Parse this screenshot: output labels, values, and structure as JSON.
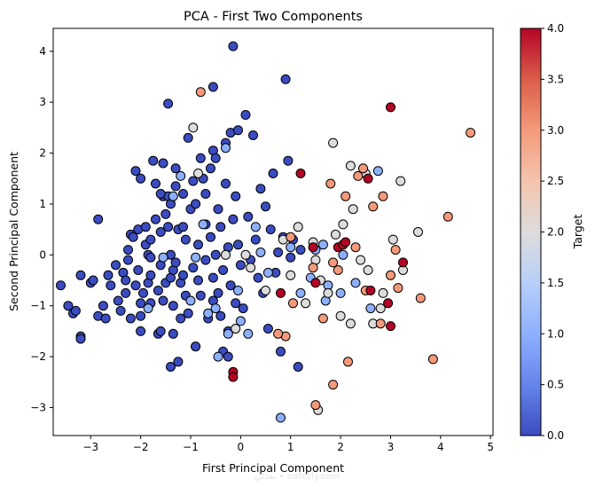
{
  "chart_data": {
    "type": "scatter",
    "title": "PCA - First Two Components",
    "xlabel": "First Principal Component",
    "ylabel": "Second Principal Component",
    "xlim": [
      -3.75,
      5.05
    ],
    "ylim": [
      -3.55,
      4.45
    ],
    "xticks": [
      -3,
      -2,
      -1,
      0,
      1,
      2,
      3,
      4,
      5
    ],
    "yticks": [
      -3,
      -2,
      -1,
      0,
      1,
      2,
      3,
      4
    ],
    "grid": false,
    "colorbar": {
      "label": "Target",
      "colormap": "coolwarm",
      "min": 0,
      "max": 4,
      "ticks": [
        "0.0",
        "0.5",
        "1.0",
        "1.5",
        "2.0",
        "2.5",
        "3.0",
        "3.5",
        "4.0"
      ],
      "colors": [
        "#3b4cc0",
        "#6485ec",
        "#8db0fe",
        "#b7cff9",
        "#dddcdc",
        "#f4c4ad",
        "#f49a7b",
        "#dc5d4a",
        "#b40426"
      ]
    },
    "watermark": "نفذلي • nafezly.com",
    "points": [
      [
        -3.6,
        -0.6,
        0
      ],
      [
        -3.45,
        -1.0,
        0
      ],
      [
        -3.35,
        -1.15,
        0
      ],
      [
        -3.3,
        -1.1,
        0
      ],
      [
        -3.2,
        -1.6,
        0
      ],
      [
        -3.2,
        -1.65,
        0
      ],
      [
        -3.2,
        -0.4,
        0
      ],
      [
        -3.0,
        -0.55,
        0
      ],
      [
        -2.95,
        -0.5,
        0
      ],
      [
        -2.85,
        0.7,
        0
      ],
      [
        -2.85,
        -1.2,
        0
      ],
      [
        -2.75,
        -1.0,
        0
      ],
      [
        -2.7,
        -1.25,
        0
      ],
      [
        -2.65,
        -0.4,
        0
      ],
      [
        -2.6,
        -0.6,
        0
      ],
      [
        -2.5,
        -0.2,
        0
      ],
      [
        -2.45,
        -0.9,
        0
      ],
      [
        -2.4,
        -1.1,
        0
      ],
      [
        -2.35,
        -0.35,
        0
      ],
      [
        -2.3,
        -0.5,
        0
      ],
      [
        -2.3,
        -0.75,
        0
      ],
      [
        -2.25,
        0.1,
        0
      ],
      [
        -2.25,
        -0.1,
        0
      ],
      [
        -2.2,
        -1.25,
        0
      ],
      [
        -2.2,
        0.4,
        0
      ],
      [
        -2.15,
        0.35,
        0
      ],
      [
        -2.1,
        -0.6,
        0
      ],
      [
        -2.1,
        1.65,
        0
      ],
      [
        -2.05,
        -0.3,
        0
      ],
      [
        -2.05,
        0.5,
        0
      ],
      [
        -2.0,
        -0.95,
        0
      ],
      [
        -2.0,
        -1.2,
        0
      ],
      [
        -2.0,
        -1.5,
        0
      ],
      [
        -2.0,
        1.5,
        0
      ],
      [
        -1.95,
        -0.75,
        0
      ],
      [
        -1.9,
        0.55,
        0
      ],
      [
        -1.9,
        0.2,
        0
      ],
      [
        -1.85,
        -0.55,
        0
      ],
      [
        -1.85,
        0.0,
        0
      ],
      [
        -1.8,
        -0.4,
        0
      ],
      [
        -1.8,
        -0.95,
        0
      ],
      [
        -1.8,
        0.3,
        0
      ],
      [
        -1.8,
        -0.05,
        0
      ],
      [
        -1.75,
        1.85,
        0
      ],
      [
        -1.7,
        1.4,
        0
      ],
      [
        -1.7,
        0.7,
        0
      ],
      [
        -1.65,
        -0.7,
        0
      ],
      [
        -1.65,
        -1.55,
        0
      ],
      [
        -1.6,
        -0.2,
        0
      ],
      [
        -1.6,
        -1.5,
        0
      ],
      [
        -1.6,
        0.45,
        0
      ],
      [
        -1.55,
        1.15,
        0
      ],
      [
        -1.55,
        1.8,
        0
      ],
      [
        -1.55,
        -0.9,
        0
      ],
      [
        -1.5,
        0.8,
        0
      ],
      [
        -1.5,
        -0.55,
        0
      ],
      [
        -1.45,
        0.55,
        0
      ],
      [
        -1.45,
        1.15,
        0
      ],
      [
        -1.4,
        -0.45,
        0
      ],
      [
        -1.4,
        0.0,
        0
      ],
      [
        -1.4,
        -2.2,
        0
      ],
      [
        -1.4,
        1.0,
        0
      ],
      [
        -1.35,
        -1.0,
        0
      ],
      [
        -1.35,
        -0.3,
        0
      ],
      [
        -1.35,
        -1.55,
        0
      ],
      [
        -1.3,
        1.35,
        0
      ],
      [
        -1.3,
        1.7,
        0
      ],
      [
        -1.3,
        -0.15,
        0
      ],
      [
        -1.25,
        0.5,
        0
      ],
      [
        -1.2,
        -0.55,
        0
      ],
      [
        -1.2,
        -1.25,
        0
      ],
      [
        -1.15,
        -0.4,
        0
      ],
      [
        -1.15,
        1.2,
        0
      ],
      [
        -1.1,
        0.3,
        0
      ],
      [
        -1.1,
        -0.8,
        0
      ],
      [
        -1.05,
        -1.15,
        0
      ],
      [
        -1.0,
        0.9,
        0
      ],
      [
        -0.95,
        -0.25,
        0
      ],
      [
        -0.95,
        1.45,
        0
      ],
      [
        -0.9,
        -1.8,
        0
      ],
      [
        -0.9,
        1.0,
        0
      ],
      [
        -0.85,
        -0.5,
        0
      ],
      [
        -0.85,
        0.2,
        0
      ],
      [
        -0.8,
        1.9,
        0
      ],
      [
        -0.8,
        -0.8,
        0
      ],
      [
        -0.75,
        1.5,
        0
      ],
      [
        -0.7,
        0.6,
        0
      ],
      [
        -0.7,
        -0.1,
        0
      ],
      [
        -0.65,
        -1.25,
        0
      ],
      [
        -0.6,
        1.7,
        0
      ],
      [
        -0.6,
        0.35,
        0
      ],
      [
        -0.55,
        -0.45,
        0
      ],
      [
        -0.55,
        2.05,
        0
      ],
      [
        -0.5,
        0.0,
        0
      ],
      [
        -0.5,
        1.9,
        0
      ],
      [
        -0.45,
        -0.75,
        0
      ],
      [
        -0.45,
        0.9,
        0
      ],
      [
        -0.4,
        -1.2,
        0
      ],
      [
        -0.4,
        0.55,
        0
      ],
      [
        -0.35,
        -1.9,
        0
      ],
      [
        -0.35,
        -0.3,
        0
      ],
      [
        -0.3,
        1.4,
        0
      ],
      [
        -0.25,
        0.15,
        0
      ],
      [
        -0.25,
        -1.5,
        0
      ],
      [
        -0.2,
        2.4,
        0
      ],
      [
        -0.2,
        -0.6,
        0
      ],
      [
        -0.15,
        0.7,
        0
      ],
      [
        -0.1,
        -0.95,
        0
      ],
      [
        -0.1,
        1.15,
        0
      ],
      [
        -0.05,
        0.2,
        0
      ],
      [
        0.0,
        -0.2,
        0
      ],
      [
        0.05,
        -1.05,
        0
      ],
      [
        0.1,
        2.75,
        0
      ],
      [
        0.15,
        0.75,
        0
      ],
      [
        0.2,
        -0.1,
        0
      ],
      [
        0.25,
        2.35,
        0
      ],
      [
        0.3,
        0.3,
        0
      ],
      [
        0.35,
        -0.45,
        0
      ],
      [
        0.4,
        1.3,
        0
      ],
      [
        0.45,
        -0.75,
        0
      ],
      [
        0.5,
        0.95,
        0
      ],
      [
        0.55,
        -1.45,
        0
      ],
      [
        0.6,
        0.5,
        0
      ],
      [
        0.65,
        1.6,
        0
      ],
      [
        0.7,
        -0.35,
        0
      ],
      [
        0.75,
        0.05,
        0
      ],
      [
        0.8,
        -1.9,
        0
      ],
      [
        0.85,
        0.35,
        0
      ],
      [
        0.9,
        3.45,
        0
      ],
      [
        0.95,
        1.85,
        0
      ],
      [
        1.0,
        -0.05,
        0
      ],
      [
        1.05,
        0.3,
        0
      ],
      [
        1.15,
        -2.2,
        0
      ],
      [
        1.2,
        0.1,
        0
      ],
      [
        -1.45,
        2.97,
        0
      ],
      [
        -0.55,
        3.3,
        0
      ],
      [
        -0.15,
        4.1,
        0
      ],
      [
        -0.9,
        -1.8,
        0
      ],
      [
        -1.05,
        2.3,
        0
      ],
      [
        -0.3,
        2.2,
        0
      ],
      [
        -0.05,
        2.45,
        0
      ],
      [
        -1.6,
        1.2,
        0
      ],
      [
        -1.15,
        0.55,
        0
      ],
      [
        -0.7,
        1.2,
        0
      ],
      [
        -0.25,
        -2.0,
        0
      ],
      [
        -1.25,
        -2.1,
        0
      ],
      [
        -0.55,
        -0.9,
        0
      ],
      [
        -1.35,
        1.15,
        1
      ],
      [
        -1.2,
        1.55,
        1
      ],
      [
        -1.0,
        -0.9,
        1
      ],
      [
        -1.55,
        -0.05,
        1
      ],
      [
        -1.85,
        -1.05,
        1
      ],
      [
        -0.9,
        -0.05,
        1
      ],
      [
        -0.75,
        0.6,
        1
      ],
      [
        -0.5,
        -1.05,
        1
      ],
      [
        -0.45,
        -2.0,
        1
      ],
      [
        -0.3,
        2.1,
        1
      ],
      [
        -0.05,
        -0.7,
        1
      ],
      [
        0.0,
        -1.3,
        1
      ],
      [
        0.15,
        -1.55,
        1
      ],
      [
        0.3,
        0.55,
        1
      ],
      [
        0.4,
        0.05,
        1
      ],
      [
        0.55,
        -0.35,
        1
      ],
      [
        0.8,
        -3.2,
        1
      ],
      [
        1.0,
        0.15,
        1
      ],
      [
        1.2,
        -0.75,
        1
      ],
      [
        1.4,
        -0.45,
        1
      ],
      [
        1.5,
        0.1,
        1
      ],
      [
        1.65,
        0.2,
        1
      ],
      [
        1.75,
        -0.6,
        1
      ],
      [
        2.05,
        0.0,
        1
      ],
      [
        2.3,
        -0.55,
        1
      ],
      [
        2.6,
        -1.05,
        1
      ],
      [
        2.75,
        1.65,
        1
      ],
      [
        -0.65,
        -1.15,
        1
      ],
      [
        1.7,
        -0.9,
        1
      ],
      [
        2.0,
        -0.75,
        1
      ],
      [
        -0.25,
        -1.55,
        1
      ],
      [
        -0.95,
        2.5,
        2
      ],
      [
        -0.85,
        1.6,
        2
      ],
      [
        -0.3,
        0.0,
        2
      ],
      [
        0.2,
        -0.25,
        2
      ],
      [
        0.5,
        -0.7,
        2
      ],
      [
        0.85,
        0.3,
        2
      ],
      [
        1.0,
        -0.4,
        2
      ],
      [
        1.15,
        0.55,
        2
      ],
      [
        1.3,
        -0.95,
        2
      ],
      [
        1.45,
        0.25,
        2
      ],
      [
        1.5,
        -0.1,
        2
      ],
      [
        1.6,
        -0.5,
        2
      ],
      [
        1.75,
        -0.75,
        2
      ],
      [
        1.85,
        2.2,
        2
      ],
      [
        1.9,
        0.4,
        2
      ],
      [
        2.0,
        -1.2,
        2
      ],
      [
        2.05,
        0.6,
        2
      ],
      [
        2.2,
        1.75,
        2
      ],
      [
        2.25,
        0.9,
        2
      ],
      [
        2.4,
        -0.1,
        2
      ],
      [
        2.5,
        1.6,
        2
      ],
      [
        2.55,
        -0.3,
        2
      ],
      [
        2.65,
        -1.35,
        2
      ],
      [
        2.8,
        -1.05,
        2
      ],
      [
        2.85,
        -0.75,
        2
      ],
      [
        3.05,
        0.3,
        2
      ],
      [
        3.2,
        1.45,
        2
      ],
      [
        3.25,
        -0.3,
        2
      ],
      [
        3.55,
        0.45,
        2
      ],
      [
        2.2,
        -1.35,
        2
      ],
      [
        -0.1,
        -1.45,
        2
      ],
      [
        0.1,
        0.0,
        2
      ],
      [
        1.55,
        -3.05,
        2
      ],
      [
        -0.8,
        3.2,
        3
      ],
      [
        0.9,
        -1.6,
        3
      ],
      [
        1.0,
        0.35,
        3
      ],
      [
        1.45,
        -0.25,
        3
      ],
      [
        1.65,
        -1.25,
        3
      ],
      [
        1.8,
        1.4,
        3
      ],
      [
        1.85,
        -2.55,
        3
      ],
      [
        1.95,
        -0.3,
        3
      ],
      [
        2.1,
        1.15,
        3
      ],
      [
        2.15,
        -2.1,
        3
      ],
      [
        2.3,
        0.15,
        3
      ],
      [
        2.45,
        1.7,
        3
      ],
      [
        2.5,
        -0.7,
        3
      ],
      [
        2.65,
        0.95,
        3
      ],
      [
        2.8,
        -1.35,
        3
      ],
      [
        2.85,
        1.15,
        3
      ],
      [
        3.0,
        -0.4,
        3
      ],
      [
        3.1,
        0.1,
        3
      ],
      [
        3.15,
        -0.65,
        3
      ],
      [
        3.6,
        -0.85,
        3
      ],
      [
        3.85,
        -2.05,
        3
      ],
      [
        4.15,
        0.75,
        3
      ],
      [
        4.6,
        2.4,
        3
      ],
      [
        1.5,
        -2.95,
        3
      ],
      [
        1.05,
        -0.95,
        3
      ],
      [
        0.75,
        -1.55,
        3
      ],
      [
        2.35,
        1.55,
        3
      ],
      [
        1.85,
        -0.15,
        3
      ],
      [
        0.8,
        -0.75,
        4
      ],
      [
        1.2,
        1.6,
        4
      ],
      [
        1.45,
        0.15,
        4
      ],
      [
        1.5,
        -0.55,
        4
      ],
      [
        1.95,
        0.15,
        4
      ],
      [
        2.05,
        0.2,
        4
      ],
      [
        2.1,
        0.25,
        4
      ],
      [
        2.55,
        1.5,
        4
      ],
      [
        2.6,
        -0.7,
        4
      ],
      [
        2.95,
        -0.95,
        4
      ],
      [
        3.0,
        2.9,
        4
      ],
      [
        3.0,
        -1.4,
        4
      ],
      [
        3.25,
        -0.15,
        4
      ],
      [
        -0.15,
        -2.3,
        4
      ],
      [
        -0.15,
        -2.4,
        4
      ]
    ]
  }
}
